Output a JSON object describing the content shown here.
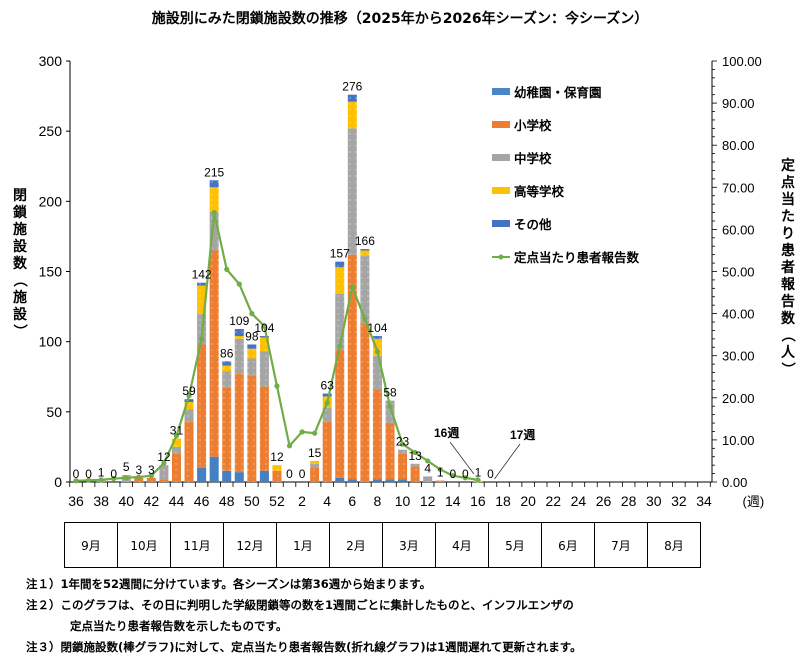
{
  "title": "施設別にみた閉鎖施設数の推移（2025年から2026年シーズン：今シーズン）",
  "chart_data": {
    "type": "bar",
    "stacked": true,
    "title": "施設別にみた閉鎖施設数の推移（2025年から2026年シーズン：今シーズン）",
    "xlabel": "(週)",
    "ylabel": "閉鎖施設数（施設）",
    "y2label": "定点当たり患者報告数（人）",
    "ylim": [
      0,
      300
    ],
    "y2lim": [
      0,
      100
    ],
    "yticks": [
      "0",
      "50",
      "100",
      "150",
      "200",
      "250",
      "300"
    ],
    "y2ticks": [
      "0.00",
      "10.00",
      "20.00",
      "30.00",
      "40.00",
      "50.00",
      "60.00",
      "70.00",
      "80.00",
      "90.00",
      "100.00"
    ],
    "xtick_labels": [
      "36",
      "38",
      "40",
      "42",
      "44",
      "46",
      "48",
      "50",
      "52",
      "2",
      "4",
      "6",
      "8",
      "10",
      "12",
      "14",
      "16",
      "18",
      "20",
      "22",
      "24",
      "26",
      "28",
      "30",
      "32",
      "34"
    ],
    "weeks": [
      36,
      37,
      38,
      39,
      40,
      41,
      42,
      43,
      44,
      45,
      46,
      47,
      48,
      49,
      50,
      51,
      52,
      1,
      2,
      3,
      4,
      5,
      6,
      7,
      8,
      9,
      10,
      11,
      12,
      13,
      14,
      15,
      16,
      17
    ],
    "totals": [
      0,
      0,
      1,
      0,
      5,
      3,
      3,
      12,
      31,
      59,
      142,
      215,
      86,
      109,
      98,
      104,
      12,
      0,
      0,
      15,
      63,
      157,
      276,
      166,
      104,
      58,
      23,
      13,
      4,
      1,
      0,
      0,
      1,
      0
    ],
    "series": [
      {
        "name": "幼稚園・保育園",
        "color": "#4a86c8",
        "values": [
          0,
          0,
          0,
          0,
          0,
          0,
          0,
          0,
          0,
          0,
          10,
          18,
          8,
          7,
          0,
          8,
          0,
          0,
          0,
          0,
          0,
          3,
          2,
          0,
          2,
          2,
          2,
          0,
          0,
          0,
          0,
          0,
          0,
          0
        ]
      },
      {
        "name": "小学校",
        "color": "#ed7d31",
        "values": [
          0,
          0,
          1,
          0,
          0,
          3,
          3,
          2,
          20,
          43,
          88,
          147,
          59,
          70,
          76,
          60,
          8,
          0,
          0,
          10,
          43,
          91,
          160,
          113,
          64,
          40,
          18,
          11,
          0,
          1,
          0,
          0,
          0,
          0
        ]
      },
      {
        "name": "中学校",
        "color": "#a5a5a5",
        "values": [
          0,
          0,
          0,
          0,
          5,
          0,
          0,
          10,
          5,
          9,
          22,
          28,
          12,
          25,
          12,
          25,
          0,
          0,
          0,
          3,
          10,
          40,
          90,
          48,
          24,
          16,
          3,
          2,
          4,
          0,
          0,
          0,
          0,
          0
        ]
      },
      {
        "name": "高等学校",
        "color": "#ffc000",
        "values": [
          0,
          0,
          0,
          0,
          0,
          0,
          0,
          0,
          6,
          5,
          20,
          17,
          4,
          2,
          7,
          10,
          4,
          0,
          0,
          2,
          8,
          19,
          19,
          4,
          12,
          0,
          0,
          0,
          0,
          0,
          0,
          0,
          1,
          0
        ]
      },
      {
        "name": "その他",
        "color": "#4472c4",
        "values": [
          0,
          0,
          0,
          0,
          0,
          0,
          0,
          0,
          0,
          2,
          2,
          5,
          3,
          5,
          3,
          1,
          0,
          0,
          0,
          0,
          2,
          4,
          5,
          1,
          2,
          0,
          0,
          0,
          0,
          0,
          0,
          0,
          0,
          0
        ]
      }
    ],
    "line_series": {
      "name": "定点当たり患者報告数",
      "color": "#70ad47",
      "axis": "right",
      "weeks": [
        36,
        37,
        38,
        39,
        40,
        41,
        42,
        43,
        44,
        45,
        46,
        47,
        48,
        49,
        50,
        51,
        52,
        1,
        2,
        3,
        4,
        5,
        6,
        7,
        8,
        9,
        10,
        11,
        12,
        13,
        14,
        15,
        16
      ],
      "values": [
        0.3,
        0.4,
        0.5,
        0.8,
        1.0,
        1.2,
        1.5,
        4.5,
        11.0,
        20.5,
        34.0,
        64.0,
        50.5,
        47.0,
        40.0,
        37.0,
        22.8,
        8.6,
        11.9,
        11.6,
        18.8,
        32.3,
        46.3,
        38.7,
        31.0,
        18.0,
        9.0,
        7.0,
        5.0,
        3.0,
        1.5,
        1.0,
        0.5
      ]
    },
    "annotations": [
      {
        "text": "16週",
        "target_week": 16
      },
      {
        "text": "17週",
        "target_week": 17
      }
    ],
    "legend_position": "upper right (inside)",
    "grid": false
  },
  "legend": [
    {
      "label": "幼稚園・保育園",
      "color": "#4a86c8",
      "kind": "bar"
    },
    {
      "label": "小学校",
      "color": "#ed7d31",
      "kind": "bar"
    },
    {
      "label": "中学校",
      "color": "#a5a5a5",
      "kind": "bar"
    },
    {
      "label": "高等学校",
      "color": "#ffc000",
      "kind": "bar"
    },
    {
      "label": "その他",
      "color": "#4472c4",
      "kind": "bar"
    },
    {
      "label": "定点当たり患者報告数",
      "color": "#70ad47",
      "kind": "line"
    }
  ],
  "axes": {
    "left_label": "閉鎖施設数（施設）",
    "right_label": "定点当たり患者報告数（人）",
    "x_unit": "(週)"
  },
  "months": [
    "9月",
    "10月",
    "11月",
    "12月",
    "1月",
    "2月",
    "3月",
    "4月",
    "5月",
    "6月",
    "7月",
    "8月"
  ],
  "notes": [
    "注１）1年間を52週間に分けています。各シーズンは第36週から始まります。",
    "注２）このグラフは、その日に判明した学級閉鎖等の数を1週間ごとに集計したものと、インフルエンザの",
    "定点当たり患者報告数を示したものです。",
    "注３）閉鎖施設数(棒グラフ)に対して、定点当たり患者報告数(折れ線グラフ)は1週間遅れて更新されます。"
  ]
}
